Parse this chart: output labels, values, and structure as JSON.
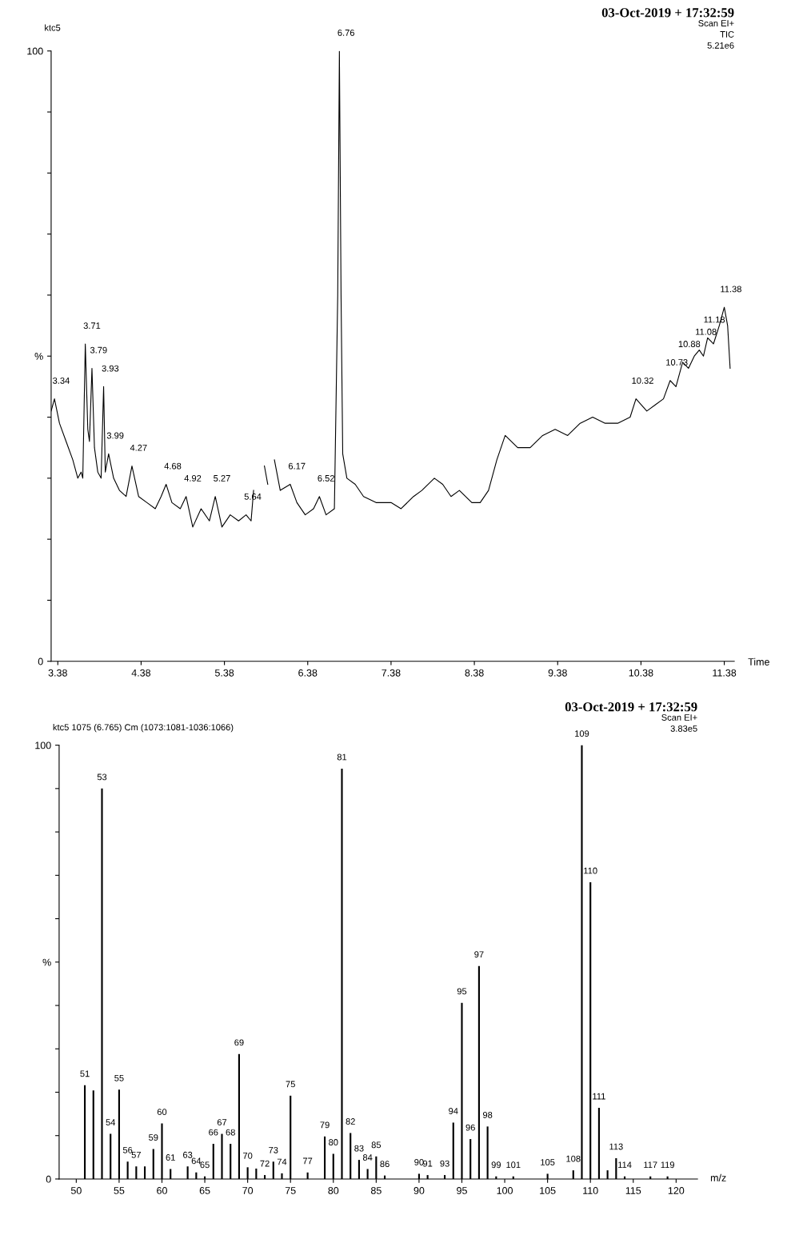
{
  "chart_data": [
    {
      "type": "line",
      "title": "03-Oct-2019 + 17:32:59",
      "ylabel": "ktc5",
      "xlabel": "Time",
      "color": "#000000",
      "x": [
        3.3,
        3.34,
        3.4,
        3.48,
        3.56,
        3.62,
        3.66,
        3.68,
        3.71,
        3.74,
        3.76,
        3.79,
        3.82,
        3.86,
        3.9,
        3.93,
        3.95,
        3.99,
        4.05,
        4.12,
        4.2,
        4.27,
        4.35,
        4.45,
        4.55,
        4.62,
        4.68,
        4.75,
        4.85,
        4.92,
        5.0,
        5.1,
        5.2,
        5.27,
        5.35,
        5.45,
        5.55,
        5.64,
        5.7,
        5.73,
        5.8,
        5.86,
        5.9,
        5.94,
        5.98,
        6.05,
        6.17,
        6.25,
        6.35,
        6.45,
        6.52,
        6.6,
        6.7,
        6.74,
        6.76,
        6.78,
        6.8,
        6.85,
        6.95,
        7.05,
        7.2,
        7.38,
        7.5,
        7.65,
        7.75,
        7.9,
        8.0,
        8.1,
        8.2,
        8.35,
        8.45,
        8.55,
        8.65,
        8.75,
        8.9,
        9.05,
        9.2,
        9.35,
        9.5,
        9.65,
        9.8,
        9.95,
        10.1,
        10.25,
        10.32,
        10.45,
        10.55,
        10.65,
        10.73,
        10.8,
        10.88,
        10.95,
        11.02,
        11.08,
        11.13,
        11.18,
        11.25,
        11.32,
        11.38,
        11.42,
        11.45
      ],
      "values": [
        41,
        43,
        39,
        36,
        33,
        30,
        31,
        30,
        52,
        38,
        36,
        48,
        35,
        31,
        30,
        45,
        31,
        34,
        30,
        28,
        27,
        32,
        27,
        26,
        25,
        27,
        29,
        26,
        25,
        27,
        22,
        25,
        23,
        27,
        22,
        24,
        23,
        24,
        23,
        28,
        null,
        32,
        29,
        null,
        33,
        28,
        29,
        26,
        24,
        25,
        27,
        24,
        25,
        60,
        100,
        60,
        34,
        30,
        29,
        27,
        26,
        26,
        25,
        27,
        28,
        30,
        29,
        27,
        28,
        26,
        26,
        28,
        33,
        37,
        35,
        35,
        37,
        38,
        37,
        39,
        40,
        39,
        39,
        40,
        43,
        41,
        42,
        43,
        46,
        45,
        49,
        48,
        50,
        51,
        50,
        53,
        52,
        55,
        58,
        55,
        48
      ],
      "annotations": [
        "Scan EI+",
        "TIC",
        "5.21e6",
        {
          "text": "3.34",
          "x": 3.34,
          "y": 43
        },
        {
          "text": "3.71",
          "x": 3.71,
          "y": 52
        },
        {
          "text": "3.79",
          "x": 3.79,
          "y": 48
        },
        {
          "text": "3.93",
          "x": 3.93,
          "y": 45
        },
        {
          "text": "3.99",
          "x": 3.99,
          "y": 34
        },
        {
          "text": "4.27",
          "x": 4.27,
          "y": 32
        },
        {
          "text": "4.68",
          "x": 4.68,
          "y": 29
        },
        {
          "text": "4.92",
          "x": 4.92,
          "y": 27
        },
        {
          "text": "5.27",
          "x": 5.27,
          "y": 27
        },
        {
          "text": "5.64",
          "x": 5.64,
          "y": 24
        },
        {
          "text": "6.17",
          "x": 6.17,
          "y": 29
        },
        {
          "text": "6.52",
          "x": 6.52,
          "y": 27
        },
        {
          "text": "6.76",
          "x": 6.76,
          "y": 100
        },
        {
          "text": "10.32",
          "x": 10.32,
          "y": 43
        },
        {
          "text": "10.73",
          "x": 10.73,
          "y": 46
        },
        {
          "text": "10.88",
          "x": 10.88,
          "y": 49
        },
        {
          "text": "11.08",
          "x": 11.08,
          "y": 51
        },
        {
          "text": "11.18",
          "x": 11.18,
          "y": 53
        },
        {
          "text": "11.38",
          "x": 11.38,
          "y": 58
        }
      ],
      "xlim": [
        3.3,
        11.5
      ],
      "xticks": [
        3.38,
        4.38,
        5.38,
        6.38,
        7.38,
        8.38,
        9.38,
        10.38,
        11.38
      ],
      "ylim": [
        0,
        100
      ],
      "yticks": [
        0,
        {
          "value": 10,
          "label": null
        },
        {
          "value": 20,
          "label": null
        },
        {
          "value": 30,
          "label": null
        },
        {
          "value": 40,
          "label": null
        },
        {
          "value": 50,
          "label": "%"
        },
        {
          "value": 60,
          "label": null
        },
        {
          "value": 70,
          "label": null
        },
        {
          "value": 80,
          "label": null
        },
        {
          "value": 90,
          "label": null
        },
        100
      ]
    },
    {
      "type": "bar",
      "title": "03-Oct-2019 + 17:32:59",
      "ylabel": "ktc5 1075 (6.765) Cm (1073:1081-1036:1066)",
      "xlabel": "m/z",
      "color": "#000000",
      "x": [
        51,
        52,
        53,
        54,
        55,
        56,
        57,
        58,
        59,
        60,
        61,
        63,
        64,
        65,
        66,
        67,
        68,
        69,
        70,
        71,
        72,
        73,
        74,
        75,
        77,
        79,
        80,
        81,
        82,
        83,
        84,
        85,
        86,
        90,
        91,
        93,
        94,
        95,
        96,
        97,
        98,
        99,
        101,
        105,
        108,
        109,
        110,
        111,
        112,
        113,
        114,
        117,
        119
      ],
      "values": [
        21.6,
        20.4,
        90,
        10.4,
        20.6,
        4.0,
        2.9,
        2.9,
        6.9,
        12.8,
        2.3,
        2.9,
        1.5,
        0.6,
        8.1,
        10.4,
        8.1,
        28.8,
        2.7,
        2.4,
        0.9,
        4.0,
        1.3,
        19.2,
        1.5,
        9.8,
        5.8,
        94.6,
        10.6,
        4.4,
        2.3,
        5.2,
        0.8,
        1.2,
        0.9,
        0.9,
        13.0,
        40.6,
        9.2,
        49.1,
        12.1,
        0.6,
        0.6,
        1.2,
        2.0,
        100,
        68.4,
        16.4,
        2.0,
        4.8,
        0.6,
        0.6,
        0.6
      ],
      "annotations": [
        "Scan EI+",
        "3.83e5",
        {
          "text": "51",
          "x": 51,
          "y": 21.6
        },
        {
          "text": "53",
          "x": 53,
          "y": 90
        },
        {
          "text": "54",
          "x": 54,
          "y": 10.4
        },
        {
          "text": "55",
          "x": 55,
          "y": 20.6
        },
        {
          "text": "56",
          "x": 56,
          "y": 4.0
        },
        {
          "text": "57",
          "x": 57,
          "y": 2.9
        },
        {
          "text": "59",
          "x": 59,
          "y": 6.9
        },
        {
          "text": "60",
          "x": 60,
          "y": 12.8
        },
        {
          "text": "61",
          "x": 61,
          "y": 2.3
        },
        {
          "text": "63",
          "x": 63,
          "y": 2.9
        },
        {
          "text": "64",
          "x": 64,
          "y": 1.5
        },
        {
          "text": "65",
          "x": 65,
          "y": 0.6
        },
        {
          "text": "66",
          "x": 66,
          "y": 8.1
        },
        {
          "text": "67",
          "x": 67,
          "y": 10.4
        },
        {
          "text": "68",
          "x": 68,
          "y": 8.1
        },
        {
          "text": "69",
          "x": 69,
          "y": 28.8
        },
        {
          "text": "70",
          "x": 70,
          "y": 2.7
        },
        {
          "text": "72",
          "x": 72,
          "y": 0.9
        },
        {
          "text": "73",
          "x": 73,
          "y": 4.0
        },
        {
          "text": "74",
          "x": 74,
          "y": 1.3
        },
        {
          "text": "75",
          "x": 75,
          "y": 19.2
        },
        {
          "text": "77",
          "x": 77,
          "y": 1.5
        },
        {
          "text": "79",
          "x": 79,
          "y": 9.8
        },
        {
          "text": "80",
          "x": 80,
          "y": 5.8
        },
        {
          "text": "81",
          "x": 81,
          "y": 94.6
        },
        {
          "text": "82",
          "x": 82,
          "y": 10.6
        },
        {
          "text": "83",
          "x": 83,
          "y": 4.4
        },
        {
          "text": "84",
          "x": 84,
          "y": 2.3
        },
        {
          "text": "85",
          "x": 85,
          "y": 5.2
        },
        {
          "text": "86",
          "x": 86,
          "y": 0.8
        },
        {
          "text": "90",
          "x": 90,
          "y": 1.2
        },
        {
          "text": "91",
          "x": 91,
          "y": 0.9
        },
        {
          "text": "93",
          "x": 93,
          "y": 0.9
        },
        {
          "text": "94",
          "x": 94,
          "y": 13.0
        },
        {
          "text": "95",
          "x": 95,
          "y": 40.6
        },
        {
          "text": "96",
          "x": 96,
          "y": 9.2
        },
        {
          "text": "97",
          "x": 97,
          "y": 49.1
        },
        {
          "text": "98",
          "x": 98,
          "y": 12.1
        },
        {
          "text": "99",
          "x": 99,
          "y": 0.6
        },
        {
          "text": "101",
          "x": 101,
          "y": 0.6
        },
        {
          "text": "105",
          "x": 105,
          "y": 1.2
        },
        {
          "text": "108",
          "x": 108,
          "y": 2.0
        },
        {
          "text": "109",
          "x": 109,
          "y": 100
        },
        {
          "text": "110",
          "x": 110,
          "y": 68.4
        },
        {
          "text": "111",
          "x": 111,
          "y": 16.4
        },
        {
          "text": "113",
          "x": 113,
          "y": 4.8
        },
        {
          "text": "114",
          "x": 114,
          "y": 0.6
        },
        {
          "text": "117",
          "x": 117,
          "y": 0.6
        },
        {
          "text": "119",
          "x": 119,
          "y": 0.6
        }
      ],
      "xlim": [
        48,
        122.5
      ],
      "xticks": [
        50,
        55,
        60,
        65,
        70,
        75,
        80,
        85,
        90,
        95,
        100,
        105,
        110,
        115,
        120
      ],
      "ylim": [
        0,
        100
      ],
      "yticks": [
        0,
        {
          "value": 10,
          "label": null
        },
        {
          "value": 20,
          "label": null
        },
        {
          "value": 30,
          "label": null
        },
        {
          "value": 40,
          "label": null
        },
        {
          "value": 50,
          "label": "%"
        },
        {
          "value": 60,
          "label": null
        },
        {
          "value": 70,
          "label": null
        },
        {
          "value": 80,
          "label": null
        },
        {
          "value": 90,
          "label": null
        },
        100
      ]
    }
  ]
}
